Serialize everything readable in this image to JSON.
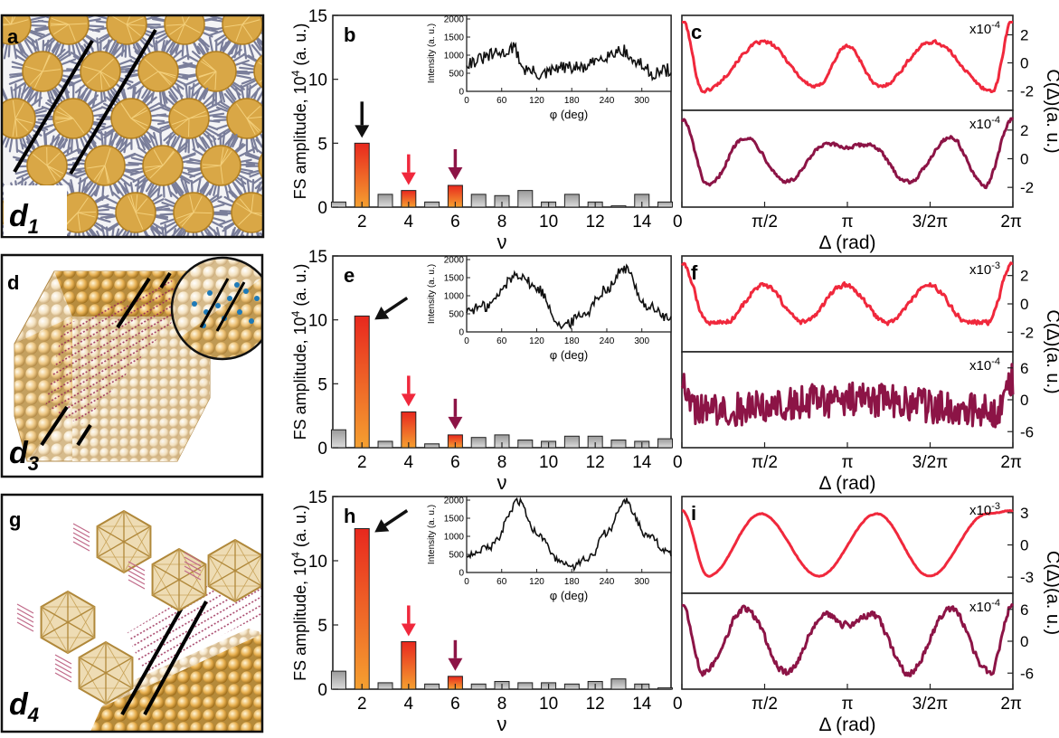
{
  "figure": {
    "rows": [
      {
        "illus_letter": "a",
        "illus_label": "d",
        "illus_sub": "1",
        "bar_letter": "b",
        "corr_letter": "c"
      },
      {
        "illus_letter": "d",
        "illus_label": "d",
        "illus_sub": "3",
        "bar_letter": "e",
        "corr_letter": "f"
      },
      {
        "illus_letter": "g",
        "illus_label": "d",
        "illus_sub": "4",
        "bar_letter": "h",
        "corr_letter": "i"
      }
    ],
    "bar_ylabel": "FS amplitude, 10",
    "bar_ylabel_sup": "4",
    "bar_ylabel_tail": " (a. u.)",
    "bar_xlabel": "ν",
    "inset_ylabel": "Intensity (a. u.)",
    "inset_xlabel": "φ (deg)",
    "corr_ylabel": "C(Δ)(a. u.)",
    "corr_xlabel": "Δ (rad)",
    "colors": {
      "black_arrow": "#111111",
      "red": "#f0283c",
      "wine": "#8c1446",
      "bar_grad_top": "#e8281e",
      "bar_grad_bottom": "#f5a030",
      "gray_bar": "#b8b8b8"
    }
  },
  "chart_data": [
    {
      "type": "bar",
      "panel": "b",
      "xlabel": "ν",
      "ylabel": "FS amplitude, 10^4 (a. u.)",
      "ylim": [
        0,
        15
      ],
      "xlim": [
        1,
        15
      ],
      "xticks": [
        2,
        4,
        6,
        8,
        10,
        12,
        14
      ],
      "yticks": [
        0,
        5,
        10,
        15
      ],
      "x": [
        1,
        2,
        3,
        4,
        5,
        6,
        7,
        8,
        9,
        10,
        11,
        12,
        13,
        14,
        15
      ],
      "values": [
        0.4,
        5.0,
        1.0,
        1.3,
        0.4,
        1.7,
        1.0,
        0.9,
        1.3,
        0.4,
        1.0,
        0.4,
        0.1,
        1.0,
        0.4
      ],
      "highlighted": {
        "2": "black",
        "4": "red",
        "6": "wine"
      }
    },
    {
      "type": "line",
      "panel": "b-inset",
      "xlabel": "φ (deg)",
      "ylabel": "Intensity (a. u.)",
      "xlim": [
        0,
        350
      ],
      "ylim": [
        0,
        2100
      ],
      "xticks": [
        0,
        60,
        120,
        180,
        240,
        300
      ],
      "yticks": [
        0,
        500,
        1000,
        1500,
        2000
      ],
      "profile": [
        [
          0,
          800
        ],
        [
          60,
          1050
        ],
        [
          80,
          1200
        ],
        [
          100,
          600
        ],
        [
          130,
          450
        ],
        [
          160,
          650
        ],
        [
          200,
          650
        ],
        [
          240,
          1000
        ],
        [
          265,
          1150
        ],
        [
          290,
          800
        ],
        [
          320,
          500
        ],
        [
          350,
          600
        ]
      ],
      "noise": 180
    },
    {
      "type": "line",
      "panel": "c",
      "xlabel": "Δ (rad)",
      "ylabel": "C(Δ)(a. u.)",
      "xticks": [
        "0",
        "π/2",
        "π",
        "3/2π",
        "2π"
      ],
      "series": [
        {
          "multiplier": "x10",
          "exp": "-4",
          "yticks": [
            2,
            0,
            -2
          ],
          "ylim": [
            -3,
            3
          ],
          "color": "#f0283c",
          "profile": [
            [
              0,
              3.2
            ],
            [
              0.4,
              -2.0
            ],
            [
              1.55,
              1.5
            ],
            [
              2.55,
              -1.7
            ],
            [
              3.14,
              1.2
            ],
            [
              3.75,
              -1.7
            ],
            [
              4.75,
              1.5
            ],
            [
              5.9,
              -2.0
            ],
            [
              6.28,
              3.2
            ]
          ],
          "noise": 0.18
        },
        {
          "multiplier": "x10",
          "exp": "-4",
          "yticks": [
            2,
            0,
            -2
          ],
          "ylim": [
            -3,
            3
          ],
          "color": "#8c1446",
          "profile": [
            [
              0,
              2.8
            ],
            [
              0.5,
              -1.9
            ],
            [
              1.2,
              1.5
            ],
            [
              2.0,
              -1.6
            ],
            [
              2.75,
              1.0
            ],
            [
              3.14,
              0.8
            ],
            [
              3.55,
              1.0
            ],
            [
              4.3,
              -1.6
            ],
            [
              5.1,
              1.5
            ],
            [
              5.75,
              -1.9
            ],
            [
              6.28,
              2.8
            ]
          ],
          "noise": 0.2
        }
      ]
    },
    {
      "type": "bar",
      "panel": "e",
      "xlabel": "ν",
      "ylabel": "FS amplitude, 10^4 (a. u.)",
      "ylim": [
        0,
        15
      ],
      "xlim": [
        1,
        15
      ],
      "xticks": [
        2,
        4,
        6,
        8,
        10,
        12,
        14
      ],
      "yticks": [
        0,
        5,
        10,
        15
      ],
      "x": [
        1,
        2,
        3,
        4,
        5,
        6,
        7,
        8,
        9,
        10,
        11,
        12,
        13,
        14,
        15
      ],
      "values": [
        1.4,
        10.3,
        0.5,
        2.8,
        0.3,
        1.0,
        0.8,
        1.0,
        0.6,
        0.5,
        0.9,
        0.9,
        0.6,
        0.5,
        0.7
      ],
      "highlighted": {
        "2": "black",
        "4": "red",
        "6": "wine"
      }
    },
    {
      "type": "line",
      "panel": "e-inset",
      "xlabel": "φ (deg)",
      "ylabel": "Intensity (a. u.)",
      "xlim": [
        0,
        350
      ],
      "ylim": [
        0,
        2100
      ],
      "xticks": [
        0,
        60,
        120,
        180,
        240,
        300
      ],
      "yticks": [
        0,
        500,
        1000,
        1500,
        2000
      ],
      "profile": [
        [
          0,
          600
        ],
        [
          30,
          700
        ],
        [
          90,
          1600
        ],
        [
          120,
          1200
        ],
        [
          165,
          150
        ],
        [
          200,
          500
        ],
        [
          240,
          1200
        ],
        [
          270,
          1750
        ],
        [
          310,
          700
        ],
        [
          350,
          350
        ]
      ],
      "noise": 150
    },
    {
      "type": "line",
      "panel": "f",
      "xlabel": "Δ (rad)",
      "ylabel": "C(Δ)(a. u.)",
      "xticks": [
        "0",
        "π/2",
        "π",
        "3/2π",
        "2π"
      ],
      "series": [
        {
          "multiplier": "x10",
          "exp": "-3",
          "yticks": [
            2,
            0,
            -2
          ],
          "ylim": [
            -3,
            3
          ],
          "color": "#f0283c",
          "profile": [
            [
              0,
              2.8
            ],
            [
              0.5,
              -1.3
            ],
            [
              0.8,
              -1.3
            ],
            [
              1.55,
              1.3
            ],
            [
              2.3,
              -1.3
            ],
            [
              3.1,
              1.3
            ],
            [
              3.9,
              -1.3
            ],
            [
              4.7,
              1.3
            ],
            [
              5.45,
              -1.3
            ],
            [
              5.8,
              -1.3
            ],
            [
              6.28,
              2.8
            ]
          ],
          "noise": 0.25
        },
        {
          "multiplier": "x10",
          "exp": "-4",
          "yticks": [
            6,
            0,
            -6
          ],
          "ylim": [
            -8,
            8
          ],
          "color": "#8c1446",
          "profile": [
            [
              0,
              4
            ],
            [
              0.3,
              -2
            ],
            [
              3.14,
              0
            ],
            [
              6.0,
              -2
            ],
            [
              6.28,
              4
            ]
          ],
          "noise": 3.2
        }
      ]
    },
    {
      "type": "bar",
      "panel": "h",
      "xlabel": "ν",
      "ylabel": "FS amplitude, 10^4 (a. u.)",
      "ylim": [
        0,
        15
      ],
      "xlim": [
        1,
        15
      ],
      "xticks": [
        2,
        4,
        6,
        8,
        10,
        12,
        14
      ],
      "yticks": [
        0,
        5,
        10,
        15
      ],
      "x": [
        1,
        2,
        3,
        4,
        5,
        6,
        7,
        8,
        9,
        10,
        11,
        12,
        13,
        14,
        15
      ],
      "values": [
        1.4,
        12.5,
        0.5,
        3.7,
        0.4,
        1.0,
        0.4,
        0.6,
        0.5,
        0.5,
        0.4,
        0.6,
        0.8,
        0.4,
        0.1
      ],
      "highlighted": {
        "2": "black",
        "4": "red",
        "6": "wine"
      }
    },
    {
      "type": "line",
      "panel": "h-inset",
      "xlabel": "φ (deg)",
      "ylabel": "Intensity (a. u.)",
      "xlim": [
        0,
        350
      ],
      "ylim": [
        0,
        2100
      ],
      "xticks": [
        0,
        60,
        120,
        180,
        240,
        300
      ],
      "yticks": [
        0,
        500,
        1000,
        1500,
        2000
      ],
      "profile": [
        [
          0,
          500
        ],
        [
          40,
          700
        ],
        [
          90,
          1950
        ],
        [
          120,
          1100
        ],
        [
          160,
          300
        ],
        [
          180,
          150
        ],
        [
          210,
          400
        ],
        [
          240,
          1100
        ],
        [
          270,
          2000
        ],
        [
          310,
          1000
        ],
        [
          350,
          500
        ]
      ],
      "noise": 110
    },
    {
      "type": "line",
      "panel": "i",
      "xlabel": "Δ (rad)",
      "ylabel": "C(Δ)(a. u.)",
      "xticks": [
        "0",
        "π/2",
        "π",
        "3/2π",
        "2π"
      ],
      "series": [
        {
          "multiplier": "x10",
          "exp": "-3",
          "yticks": [
            3,
            0,
            -3
          ],
          "ylim": [
            -4,
            4
          ],
          "color": "#f0283c",
          "profile": [
            [
              0,
              3.2
            ],
            [
              0.5,
              -2.9
            ],
            [
              1.5,
              2.9
            ],
            [
              2.6,
              -2.9
            ],
            [
              3.7,
              2.9
            ],
            [
              4.7,
              -2.9
            ],
            [
              5.8,
              2.9
            ],
            [
              6.28,
              3.2
            ]
          ],
          "smooth": true,
          "noise": 0.05
        },
        {
          "multiplier": "x10",
          "exp": "-4",
          "yticks": [
            6,
            0,
            -6
          ],
          "ylim": [
            -8,
            8
          ],
          "color": "#8c1446",
          "profile": [
            [
              0,
              7
            ],
            [
              0.4,
              -6
            ],
            [
              1.2,
              6
            ],
            [
              2.0,
              -6
            ],
            [
              2.7,
              5
            ],
            [
              3.14,
              3
            ],
            [
              3.6,
              5
            ],
            [
              4.3,
              -6
            ],
            [
              5.1,
              6
            ],
            [
              5.85,
              -6
            ],
            [
              6.28,
              7
            ]
          ],
          "noise": 0.9
        }
      ]
    }
  ]
}
